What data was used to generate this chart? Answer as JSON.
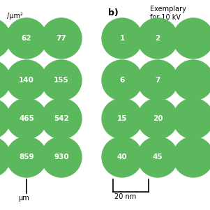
{
  "bg_color": "#ffffff",
  "green": "#5cb85c",
  "text_color": "#ffffff",
  "black": "#000000",
  "panel_a_circles": [
    {
      "row": 0,
      "col": 1,
      "val": "62"
    },
    {
      "row": 0,
      "col": 2,
      "val": "77"
    },
    {
      "row": 1,
      "col": 1,
      "val": "140"
    },
    {
      "row": 1,
      "col": 2,
      "val": "155"
    },
    {
      "row": 2,
      "col": 1,
      "val": "465"
    },
    {
      "row": 2,
      "col": 2,
      "val": "542"
    },
    {
      "row": 3,
      "col": 1,
      "val": "859"
    },
    {
      "row": 3,
      "col": 2,
      "val": "930"
    }
  ],
  "panel_b_circles": [
    {
      "row": 0,
      "col": 0,
      "val": "1"
    },
    {
      "row": 0,
      "col": 1,
      "val": "2"
    },
    {
      "row": 1,
      "col": 0,
      "val": "6"
    },
    {
      "row": 1,
      "col": 1,
      "val": "7"
    },
    {
      "row": 2,
      "col": 0,
      "val": "15"
    },
    {
      "row": 2,
      "col": 1,
      "val": "20"
    },
    {
      "row": 3,
      "col": 0,
      "val": "40"
    },
    {
      "row": 3,
      "col": 1,
      "val": "45"
    }
  ],
  "note_a": "/μm²",
  "label_b": "b)",
  "note_b1": "Exemplary",
  "note_b2": "for 10 kV",
  "scale_a_label": "μm",
  "scale_b_label": "20 nm"
}
